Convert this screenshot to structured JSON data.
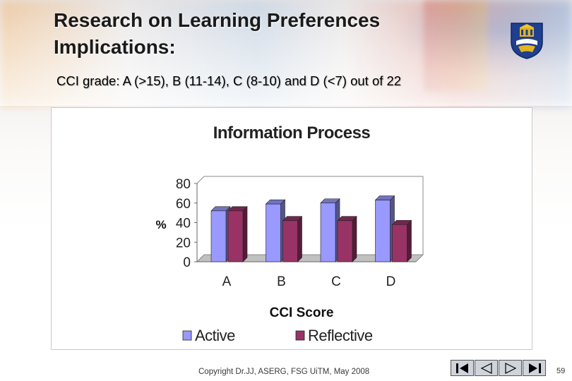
{
  "slide": {
    "title": "Research on Learning Preferences Implications:",
    "subtitle": "CCI grade: A (>15), B (11-14), C (8-10) and D (<7) out of 22",
    "footer": "Copyright Dr.JJ, ASERG, FSG UiTM, May 2008",
    "page_number": "59"
  },
  "nav": {
    "buttons": [
      "first",
      "previous",
      "next",
      "last"
    ]
  },
  "chart_data": {
    "type": "bar",
    "title": "Information Process",
    "xlabel": "CCI Score",
    "ylabel": "%",
    "categories": [
      "A",
      "B",
      "C",
      "D"
    ],
    "series": [
      {
        "name": "Active",
        "values": [
          52,
          59,
          60,
          63
        ],
        "color": "#9999ff"
      },
      {
        "name": "Reflective",
        "values": [
          52,
          42,
          42,
          38
        ],
        "color": "#993366"
      }
    ],
    "ylim": [
      0,
      80
    ],
    "yticks": [
      "0",
      "20",
      "40",
      "60",
      "80"
    ],
    "grid": false,
    "legend": "bottom"
  }
}
